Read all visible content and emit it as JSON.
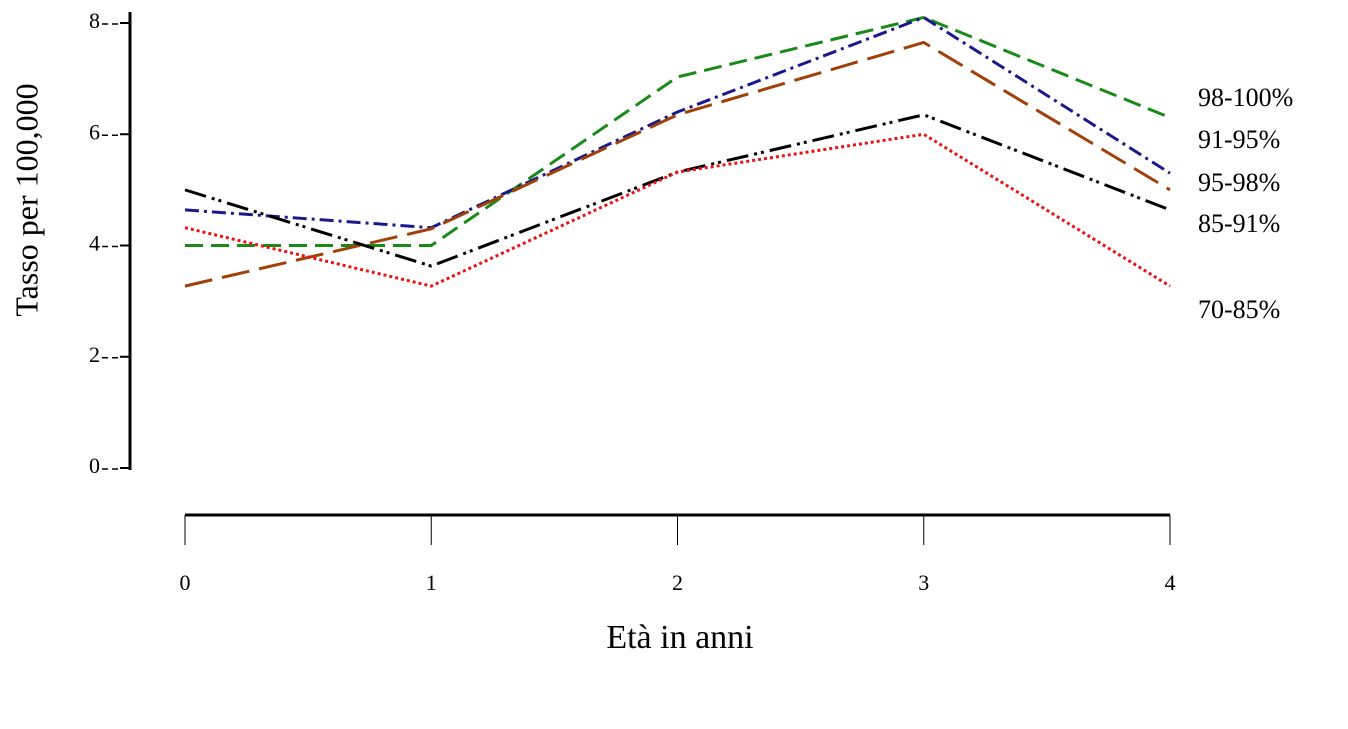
{
  "chart_data": {
    "type": "line",
    "ylabel": "Tasso per 100,000",
    "xlabel": "Età in anni",
    "categories": [
      "0",
      "1",
      "2",
      "3",
      "4"
    ],
    "ylim": [
      0,
      8
    ],
    "yticks": [
      0,
      2,
      4,
      6,
      8
    ],
    "series": [
      {
        "name": "98-100%",
        "color": "#1a8a1a",
        "dash": "18 8",
        "values": [
          4.0,
          4.0,
          7.03,
          8.1,
          6.3
        ]
      },
      {
        "name": "91-95%",
        "color": "#1a1a8a",
        "dash": "14 5 3 5",
        "values": [
          4.64,
          4.32,
          6.4,
          8.1,
          5.3
        ]
      },
      {
        "name": "95-98%",
        "color": "#a0400a",
        "dash": "28 10",
        "values": [
          3.27,
          4.3,
          6.35,
          7.65,
          5.0
        ]
      },
      {
        "name": "85-91%",
        "color": "#000000",
        "dash": "22 6 3 4 3 6",
        "values": [
          5.0,
          3.63,
          5.32,
          6.35,
          4.64
        ]
      },
      {
        "name": "70-85%",
        "color": "#ee1111",
        "dash": "3 3",
        "values": [
          4.32,
          3.27,
          5.32,
          6.0,
          3.27
        ]
      }
    ]
  }
}
